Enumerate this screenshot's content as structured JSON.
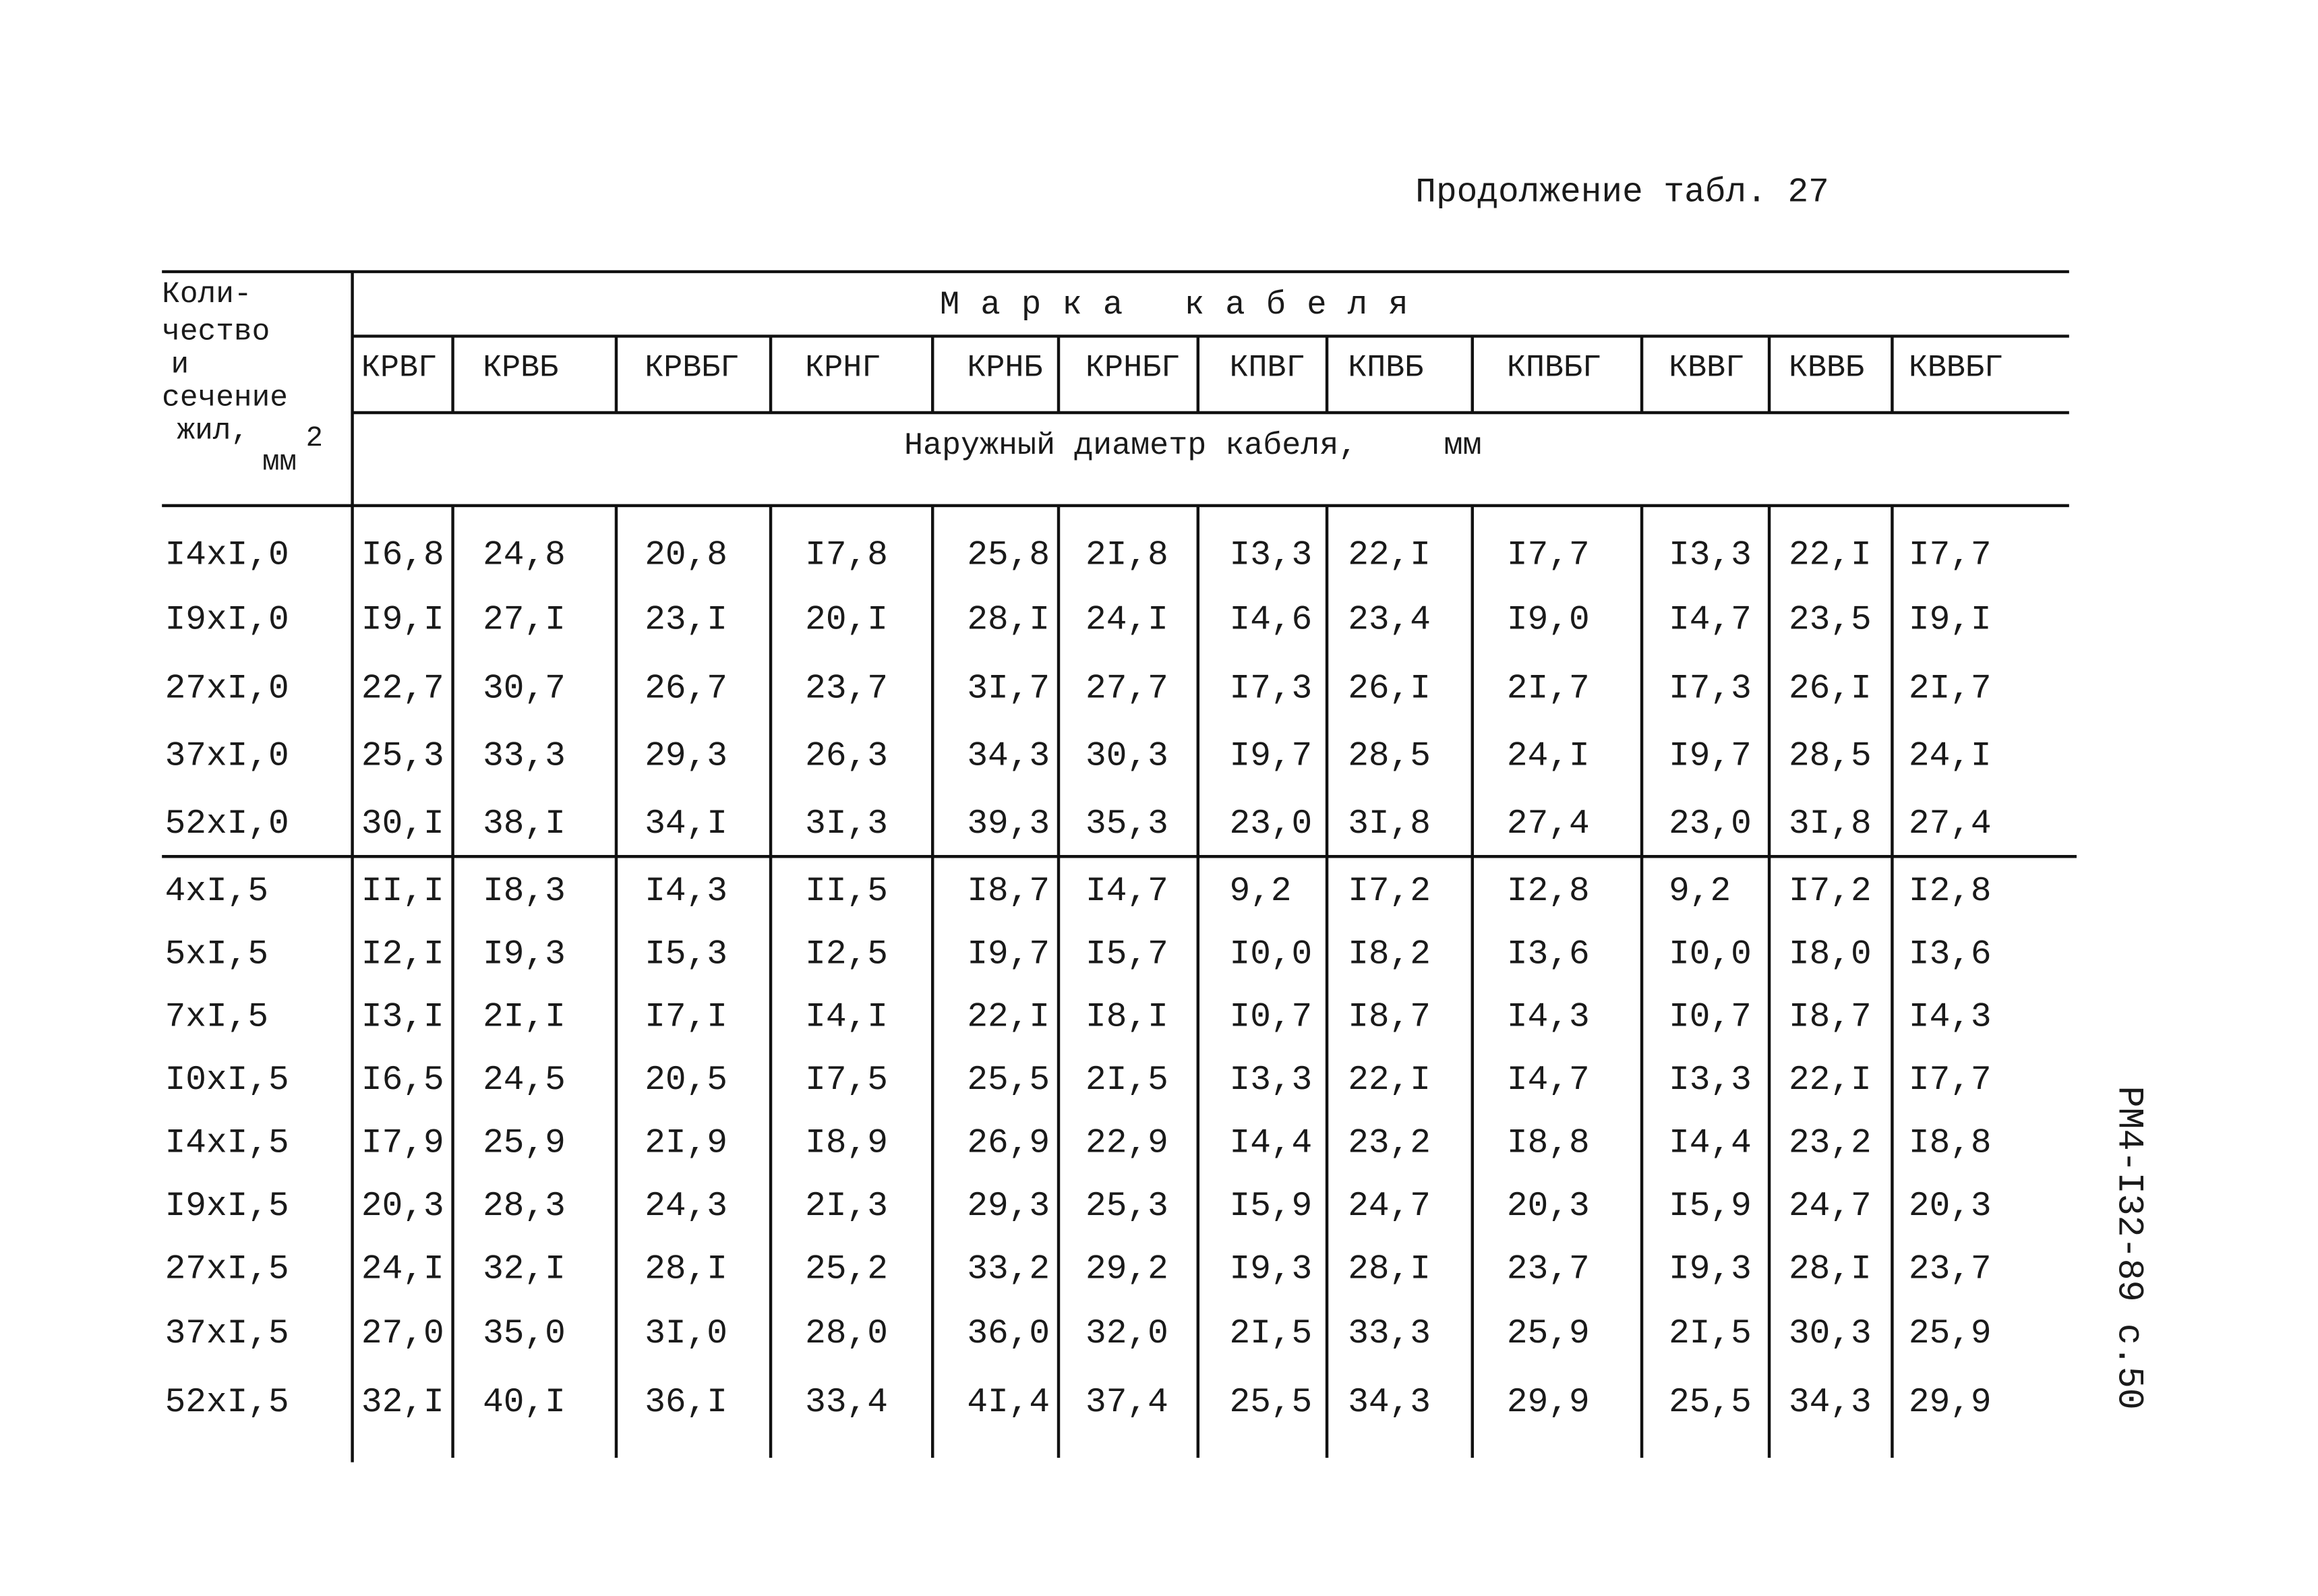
{
  "header": {
    "continuation": "Продолжение табл. 27"
  },
  "table": {
    "stub_header": {
      "lines": [
        "Коли-",
        "чество",
        "и",
        "сечение",
        "жил,"
      ],
      "unit": "мм",
      "unit_power": "2"
    },
    "group_header": "Марка кабеля",
    "columns": [
      "КРВГ",
      "КРВБ",
      "КРВБГ",
      "КРНГ",
      "КРНБ",
      "КРНБГ",
      "КПВГ",
      "КПВБ",
      "КПВБГ",
      "КВВГ",
      "КВВБ",
      "КВВБГ"
    ],
    "subheader": "Наружный диаметр кабеля,",
    "subheader_unit": "мм",
    "rows": [
      {
        "label": "I4xI,0",
        "values": [
          "I6,8",
          "24,8",
          "20,8",
          "I7,8",
          "25,8",
          "2I,8",
          "I3,3",
          "22,I",
          "I7,7",
          "I3,3",
          "22,I",
          "I7,7"
        ]
      },
      {
        "label": "I9xI,0",
        "values": [
          "I9,I",
          "27,I",
          "23,I",
          "20,I",
          "28,I",
          "24,I",
          "I4,6",
          "23,4",
          "I9,0",
          "I4,7",
          "23,5",
          "I9,I"
        ]
      },
      {
        "label": "27xI,0",
        "values": [
          "22,7",
          "30,7",
          "26,7",
          "23,7",
          "3I,7",
          "27,7",
          "I7,3",
          "26,I",
          "2I,7",
          "I7,3",
          "26,I",
          "2I,7"
        ]
      },
      {
        "label": "37xI,0",
        "values": [
          "25,3",
          "33,3",
          "29,3",
          "26,3",
          "34,3",
          "30,3",
          "I9,7",
          "28,5",
          "24,I",
          "I9,7",
          "28,5",
          "24,I"
        ]
      },
      {
        "label": "52xI,0",
        "values": [
          "30,I",
          "38,I",
          "34,I",
          "3I,3",
          "39,3",
          "35,3",
          "23,0",
          "3I,8",
          "27,4",
          "23,0",
          "3I,8",
          "27,4"
        ]
      },
      {
        "label": "4xI,5",
        "values": [
          "II,I",
          "I8,3",
          "I4,3",
          "II,5",
          "I8,7",
          "I4,7",
          "9,2",
          "I7,2",
          "I2,8",
          "9,2",
          "I7,2",
          "I2,8"
        ]
      },
      {
        "label": "5xI,5",
        "values": [
          "I2,I",
          "I9,3",
          "I5,3",
          "I2,5",
          "I9,7",
          "I5,7",
          "I0,0",
          "I8,2",
          "I3,6",
          "I0,0",
          "I8,0",
          "I3,6"
        ]
      },
      {
        "label": "7xI,5",
        "values": [
          "I3,I",
          "2I,I",
          "I7,I",
          "I4,I",
          "22,I",
          "I8,I",
          "I0,7",
          "I8,7",
          "I4,3",
          "I0,7",
          "I8,7",
          "I4,3"
        ]
      },
      {
        "label": "I0xI,5",
        "values": [
          "I6,5",
          "24,5",
          "20,5",
          "I7,5",
          "25,5",
          "2I,5",
          "I3,3",
          "22,I",
          "I4,7",
          "I3,3",
          "22,I",
          "I7,7"
        ]
      },
      {
        "label": "I4xI,5",
        "values": [
          "I7,9",
          "25,9",
          "2I,9",
          "I8,9",
          "26,9",
          "22,9",
          "I4,4",
          "23,2",
          "I8,8",
          "I4,4",
          "23,2",
          "I8,8"
        ]
      },
      {
        "label": "I9xI,5",
        "values": [
          "20,3",
          "28,3",
          "24,3",
          "2I,3",
          "29,3",
          "25,3",
          "I5,9",
          "24,7",
          "20,3",
          "I5,9",
          "24,7",
          "20,3"
        ]
      },
      {
        "label": "27xI,5",
        "values": [
          "24,I",
          "32,I",
          "28,I",
          "25,2",
          "33,2",
          "29,2",
          "I9,3",
          "28,I",
          "23,7",
          "I9,3",
          "28,I",
          "23,7"
        ]
      },
      {
        "label": "37xI,5",
        "values": [
          "27,0",
          "35,0",
          "3I,0",
          "28,0",
          "36,0",
          "32,0",
          "2I,5",
          "33,3",
          "25,9",
          "2I,5",
          "30,3",
          "25,9"
        ]
      },
      {
        "label": "52xI,5",
        "values": [
          "32,I",
          "40,I",
          "36,I",
          "33,4",
          "4I,4",
          "37,4",
          "25,5",
          "34,3",
          "29,9",
          "25,5",
          "34,3",
          "29,9"
        ]
      }
    ]
  },
  "side_note": "РМ4-I32-89 с.50"
}
